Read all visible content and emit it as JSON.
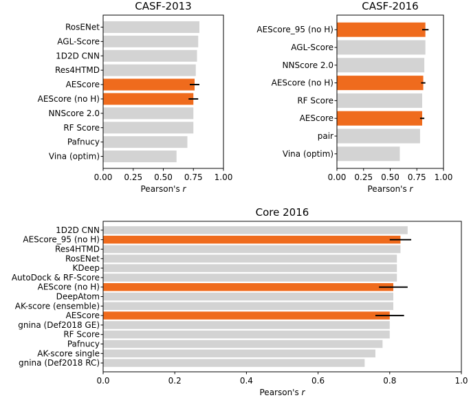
{
  "colors": {
    "highlight": "#ef6b1d",
    "default": "#d3d3d3"
  },
  "chart_data": [
    {
      "type": "bar",
      "orientation": "horizontal",
      "title": "CASF-2013",
      "xlabel": "Pearson's",
      "xlabel_var": "r",
      "xlim": [
        0,
        1
      ],
      "xticks": [
        0,
        0.25,
        0.5,
        0.75,
        1.0
      ],
      "xtick_labels": [
        "0.00",
        "0.25",
        "0.50",
        "0.75",
        "1.00"
      ],
      "categories": [
        "RosENet",
        "AGL-Score",
        "1D2D CNN",
        "Res4HTMD",
        "AEScore",
        "AEScore (no H)",
        "NNScore 2.0",
        "RF Score",
        "Pafnucy",
        "Vina (optim)"
      ],
      "values": [
        0.8,
        0.79,
        0.78,
        0.77,
        0.76,
        0.75,
        0.75,
        0.75,
        0.7,
        0.61
      ],
      "errors": [
        null,
        null,
        null,
        null,
        0.04,
        0.04,
        null,
        null,
        null,
        null
      ],
      "highlight": [
        false,
        false,
        false,
        false,
        true,
        true,
        false,
        false,
        false,
        false
      ]
    },
    {
      "type": "bar",
      "orientation": "horizontal",
      "title": "CASF-2016",
      "xlabel": "Pearson's",
      "xlabel_var": "r",
      "xlim": [
        0,
        1
      ],
      "xticks": [
        0,
        0.25,
        0.5,
        0.75,
        1.0
      ],
      "xtick_labels": [
        "0.00",
        "0.25",
        "0.50",
        "0.75",
        "1.00"
      ],
      "categories": [
        "AEScore_95 (no H)",
        "AGL-Score",
        "NNScore 2.0",
        "AEScore (no H)",
        "RF Score",
        "AEScore",
        "pair",
        "Vina (optim)"
      ],
      "values": [
        0.83,
        0.83,
        0.82,
        0.81,
        0.8,
        0.8,
        0.78,
        0.59
      ],
      "errors": [
        0.03,
        null,
        null,
        0.02,
        null,
        0.02,
        null,
        null
      ],
      "highlight": [
        true,
        false,
        false,
        true,
        false,
        true,
        false,
        false
      ]
    },
    {
      "type": "bar",
      "orientation": "horizontal",
      "title": "Core 2016",
      "xlabel": "Pearson's",
      "xlabel_var": "r",
      "xlim": [
        0,
        1
      ],
      "xticks": [
        0,
        0.2,
        0.4,
        0.6,
        0.8,
        1.0
      ],
      "xtick_labels": [
        "0.0",
        "0.2",
        "0.4",
        "0.6",
        "0.8",
        "1.0"
      ],
      "categories": [
        "1D2D CNN",
        "AEScore_95 (no H)",
        "Res4HTMD",
        "RosENet",
        "KDeep",
        "AutoDock & RF-Score",
        "AEScore (no H)",
        "DeepAtom",
        "AK-score (ensemble)",
        "AEScore",
        "gnina (Def2018 GE)",
        "RF Score",
        "Pafnucy",
        "AK-score single",
        "gnina (Def2018 RC)"
      ],
      "values": [
        0.85,
        0.83,
        0.83,
        0.82,
        0.82,
        0.82,
        0.81,
        0.81,
        0.81,
        0.8,
        0.8,
        0.8,
        0.78,
        0.76,
        0.73
      ],
      "errors": [
        null,
        0.03,
        null,
        null,
        null,
        null,
        0.04,
        null,
        null,
        0.04,
        null,
        null,
        null,
        null,
        null
      ],
      "highlight": [
        false,
        true,
        false,
        false,
        false,
        false,
        true,
        false,
        false,
        true,
        false,
        false,
        false,
        false,
        false
      ]
    }
  ]
}
